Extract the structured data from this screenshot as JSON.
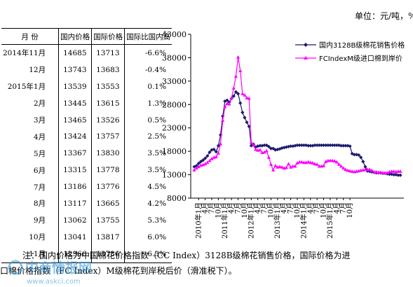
{
  "unit_label": "单位：元/吨，%",
  "table": {
    "headers": [
      "月 份",
      "国内价格",
      "国际价格",
      "国际比国内高"
    ],
    "rows": [
      [
        "2014年11月",
        "14685",
        "13713",
        "-6.6%"
      ],
      [
        "12月",
        "13743",
        "13683",
        "-0.4%"
      ],
      [
        "2015年1月",
        "13539",
        "13553",
        "0.1%"
      ],
      [
        "2月",
        "13445",
        "13615",
        "1.3%"
      ],
      [
        "3月",
        "13465",
        "13526",
        "0.5%"
      ],
      [
        "4月",
        "13424",
        "13757",
        "2.5%"
      ],
      [
        "5月",
        "13367",
        "13830",
        "3.5%"
      ],
      [
        "6月",
        "13315",
        "13778",
        "3.5%"
      ],
      [
        "7月",
        "13186",
        "13776",
        "4.5%"
      ],
      [
        "8月",
        "13117",
        "13665",
        "4.2%"
      ],
      [
        "9月",
        "13062",
        "13755",
        "5.3%"
      ],
      [
        "10月",
        "13041",
        "13817",
        "6.0%"
      ],
      [
        "11月",
        "12966",
        "13786",
        "6.3%"
      ]
    ]
  },
  "chart_data": {
    "type": "line",
    "ylim": [
      8000,
      43000
    ],
    "yticks": [
      8000,
      13000,
      18000,
      23000,
      28000,
      33000,
      38000,
      43000
    ],
    "xticks": [
      "2010年1月",
      "4月",
      "7月",
      "10月",
      "2011年1月",
      "4月",
      "7月",
      "10月",
      "2012年1月",
      "4月",
      "7月",
      "10月",
      "2013年1月",
      "4月",
      "7月",
      "10月",
      "2014年1月",
      "4月",
      "7月",
      "10月",
      "2015年1月",
      "4月",
      "7月",
      "10月"
    ],
    "legend_position": "top-right",
    "grid": false,
    "series": [
      {
        "name": "国内3128B级棉花销售价格",
        "color": "#1a1a6e",
        "marker": "diamond",
        "values": [
          14700,
          14900,
          15400,
          15800,
          16100,
          16500,
          17000,
          17800,
          18300,
          18400,
          17900,
          19200,
          21500,
          25500,
          28700,
          28900,
          28500,
          29300,
          29800,
          30700,
          30300,
          28300,
          26300,
          25200,
          24200,
          23300,
          19200,
          19500,
          18900,
          19100,
          19200,
          19200,
          19300,
          19300,
          19000,
          18600,
          18600,
          18300,
          18400,
          18500,
          18700,
          18800,
          18900,
          19000,
          19100,
          19100,
          19200,
          19300,
          19300,
          19300,
          19300,
          19300,
          19200,
          19200,
          19200,
          19300,
          19300,
          19300,
          19300,
          19300,
          19300,
          19300,
          19300,
          19300,
          19300,
          19300,
          19300,
          19200,
          19200,
          19200,
          19200,
          19100,
          17500,
          17300,
          17300,
          17200,
          16700,
          15800,
          14700,
          13800,
          13700,
          13600,
          13500,
          13400,
          13400,
          13400,
          13300,
          13300,
          13200,
          13100,
          13100,
          13000,
          13000,
          12900,
          12900
        ]
      },
      {
        "name": "FCIndexM级进口棉到岸价",
        "color": "#ff00ff",
        "marker": "triangle",
        "values": [
          14000,
          14400,
          14700,
          15000,
          15100,
          15300,
          15600,
          16000,
          16400,
          16700,
          16800,
          17600,
          19600,
          24600,
          27500,
          28200,
          28100,
          29400,
          31500,
          34000,
          38100,
          35200,
          30300,
          30000,
          29400,
          29300,
          19900,
          19300,
          18400,
          18200,
          18300,
          17700,
          17800,
          18100,
          16700,
          15200,
          14000,
          14900,
          14600,
          14700,
          14600,
          14400,
          14500,
          15300,
          14600,
          14800,
          14800,
          15500,
          15700,
          15700,
          15600,
          15600,
          15700,
          15600,
          15500,
          15300,
          15200,
          14800,
          14800,
          14900,
          15800,
          16000,
          16000,
          16000,
          15900,
          15700,
          15200,
          14800,
          14400,
          14100,
          13900,
          13800,
          13700,
          13600,
          13700,
          13800,
          13900,
          14000,
          14100,
          14100,
          14100,
          13900,
          13600,
          13600,
          13500,
          13500,
          13400,
          13400,
          13400,
          13600,
          13700,
          13700,
          13600,
          13700,
          13700
        ]
      }
    ]
  },
  "footnote": {
    "line1": "注：国内价格为中国棉花价格指数（CC Index）3128B级棉花销售价格，国际价格为进",
    "line2": "口棉价格指数（FC Index）M级棉花到岸税后价（滑准税下）。"
  },
  "watermark": {
    "text": "中商情报网",
    "url": "www.askci.com"
  }
}
